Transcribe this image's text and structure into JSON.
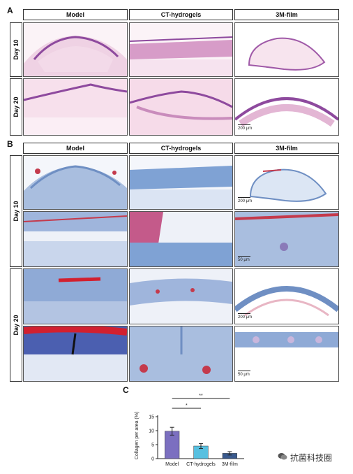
{
  "panels": {
    "a": "A",
    "b": "B",
    "c": "C"
  },
  "columns": [
    "Model",
    "CT-hydrogels",
    "3M-film"
  ],
  "rows": {
    "day10": "Day 10",
    "day20": "Day 20"
  },
  "scalebars": {
    "a_day20_3m": "200 μm",
    "b_day10_3m_low": "200 μm",
    "b_day10_3m_high": "50 μm",
    "b_day20_3m_low": "200 μm",
    "b_day20_3m_high": "50 μm"
  },
  "colors": {
    "he_pink": "#e6b3d4",
    "he_purple": "#8e4a9e",
    "masson_blue": "#6f8fc3",
    "masson_red": "#c43a4c",
    "bar_model": "#7b6fc0",
    "bar_ct": "#58c0e0",
    "bar_3m": "#3a5a8e"
  },
  "chart_data": {
    "type": "bar",
    "categories": [
      "Model",
      "CT-hydrogels",
      "3M-film"
    ],
    "values": [
      9.8,
      4.5,
      1.9
    ],
    "errors": [
      1.4,
      0.9,
      0.6
    ],
    "ylabel": "Collagen per area (%)",
    "ylim": [
      0,
      15
    ],
    "yticks": [
      0,
      5,
      10,
      15
    ],
    "significance": [
      {
        "from": "Model",
        "to": "CT-hydrogels",
        "label": "*"
      },
      {
        "from": "Model",
        "to": "3M-film",
        "label": "**"
      }
    ]
  },
  "watermark": {
    "icon": "wechat-icon",
    "text": "抗菌科技圈"
  }
}
